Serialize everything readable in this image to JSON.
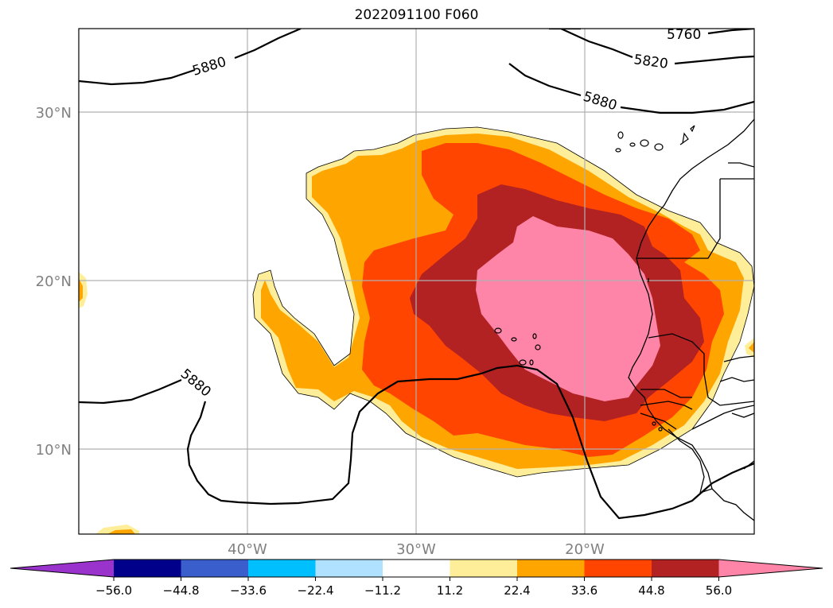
{
  "title": "2022091100 F060",
  "lat_labels": [
    "30°N",
    "20°N",
    "10°N"
  ],
  "lon_labels": [
    "40°W",
    "30°W",
    "20°W"
  ],
  "contour_labels": [
    "5760",
    "5820",
    "5880",
    "5880",
    "5880"
  ],
  "colorbar": {
    "ticks": [
      "−56.0",
      "−44.8",
      "−33.6",
      "−22.4",
      "−11.2",
      "11.2",
      "22.4",
      "33.6",
      "44.8",
      "56.0"
    ],
    "colors": [
      "#9933cc",
      "#00008b",
      "#3a5fcd",
      "#00bfff",
      "#b0e2ff",
      "#ffffff",
      "#ffee99",
      "#ffa500",
      "#ff4500",
      "#b22222",
      "#ff85a8"
    ]
  },
  "map": {
    "domain": "North Atlantic / West Africa",
    "lon_range": [
      -50,
      -10
    ],
    "lat_range": [
      5,
      35
    ],
    "fill_levels": [
      11.2,
      22.4,
      33.6,
      44.8,
      56.0
    ],
    "contour_field_levels": [
      5760,
      5820,
      5880
    ]
  }
}
